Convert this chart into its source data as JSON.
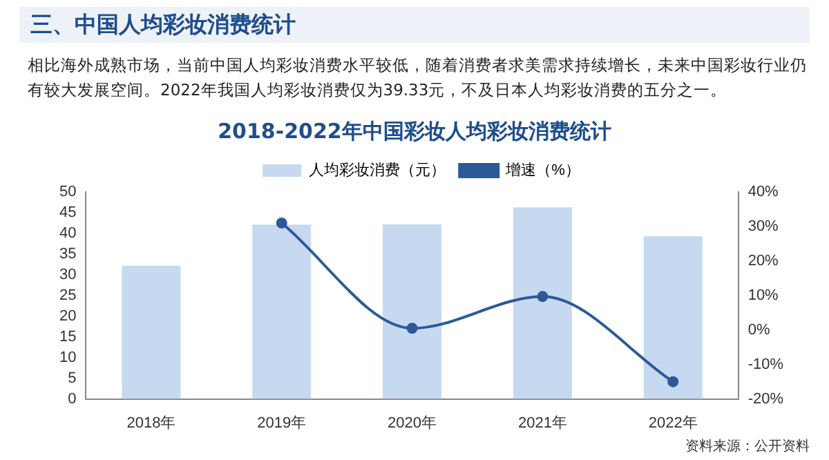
{
  "chart_data": {
    "type": "bar",
    "title": "2018-2022年中国彩妆人均彩妆消费统计",
    "annotations": [
      "三、中国人均彩妆消费统计",
      "相比海外成熟市场，当前中国人均彩妆消费水平较低，随着消费者求美需求持续增长，未来中国彩妆行业仍有较大发展空间。2022年我国人均彩妆消费仅为39.33元，不及日本人均彩妆消费的五分之一。",
      "资料来源：公开资料"
    ],
    "categories": [
      "2018年",
      "2019年",
      "2020年",
      "2021年",
      "2022年"
    ],
    "series": [
      {
        "name": "人均彩妆消费（元）",
        "color": "#c6d9f1",
        "values": [
          32.2,
          42.1,
          42.2,
          46.3,
          39.33
        ]
      },
      {
        "name": "增速（%）",
        "type": "line",
        "axis": "y2",
        "color": "#2c5a97",
        "values": [
          null,
          31,
          0.5,
          9.7,
          -15
        ]
      }
    ],
    "ylim": [
      0,
      50
    ],
    "yticks": [
      0,
      5,
      10,
      15,
      20,
      25,
      30,
      35,
      40,
      45,
      50
    ],
    "y2lim": [
      -20,
      40
    ],
    "y2ticks": [
      {
        "value": -20,
        "label": "-20%"
      },
      {
        "value": -10,
        "label": "-10%"
      },
      {
        "value": 0,
        "label": "0%"
      },
      {
        "value": 10,
        "label": "10%"
      },
      {
        "value": 20,
        "label": "20%"
      },
      {
        "value": 30,
        "label": "30%"
      },
      {
        "value": 40,
        "label": "40%"
      }
    ],
    "grid": false,
    "legend": "top",
    "marker": "circle",
    "line_style": "solid"
  }
}
